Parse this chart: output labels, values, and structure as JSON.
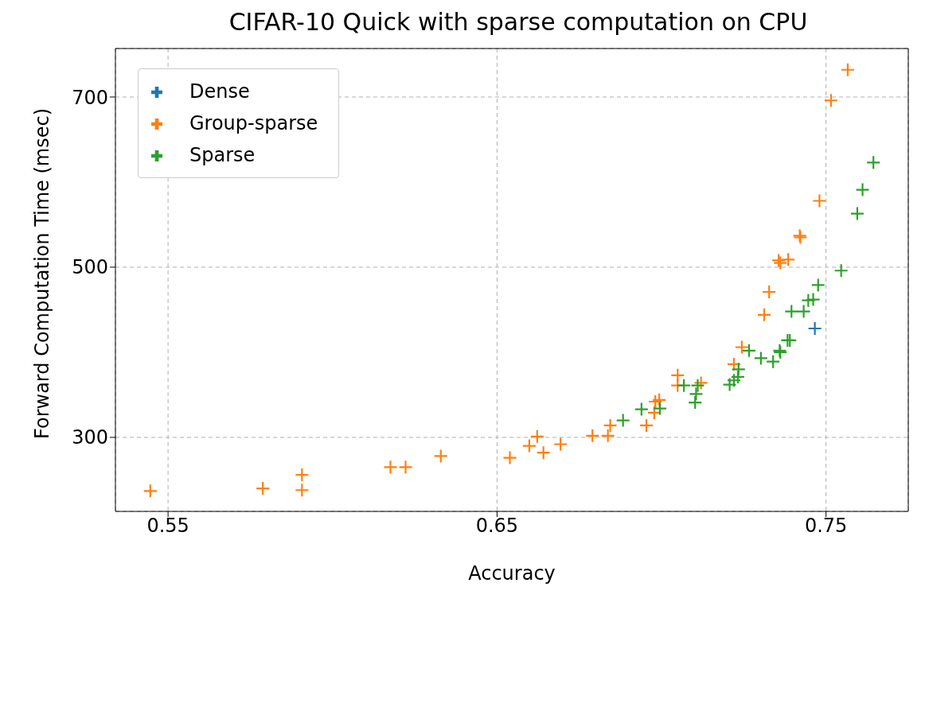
{
  "chart_data": {
    "type": "scatter",
    "title": "CIFAR-10 Quick with sparse computation on CPU",
    "xlabel": "Accuracy",
    "ylabel": "Forward Computation Time (msec)",
    "xlim": [
      0.534,
      0.775
    ],
    "ylim": [
      213,
      757
    ],
    "xticks": [
      0.55,
      0.65,
      0.75
    ],
    "yticks": [
      300,
      500,
      700
    ],
    "grid": true,
    "legend": "top left",
    "marker": "cross",
    "series": [
      {
        "name": "Dense",
        "color": "#1f77b4",
        "x": [
          0.7466
        ],
        "values": [
          428
        ]
      },
      {
        "name": "Group-sparse",
        "color": "#ff7f0e",
        "x": [
          0.5446,
          0.5788,
          0.5907,
          0.5907,
          0.6176,
          0.6222,
          0.6329,
          0.6539,
          0.6598,
          0.6622,
          0.6641,
          0.6693,
          0.679,
          0.6837,
          0.6844,
          0.6954,
          0.6978,
          0.6981,
          0.6993,
          0.7049,
          0.7049,
          0.712,
          0.722,
          0.7244,
          0.7312,
          0.7327,
          0.7356,
          0.7385,
          0.7361,
          0.748,
          0.742,
          0.7422,
          0.7566,
          0.7515
        ],
        "values": [
          237,
          240,
          256,
          238,
          265,
          265,
          278,
          276,
          290,
          301,
          282,
          292,
          302,
          302,
          314,
          314,
          329,
          342,
          344,
          373,
          361,
          364,
          386,
          406,
          444,
          471,
          508,
          509,
          505,
          578,
          537,
          535,
          732,
          696
        ]
      },
      {
        "name": "Sparse",
        "color": "#2ca02c",
        "x": [
          0.7644,
          0.7611,
          0.7595,
          0.7546,
          0.7476,
          0.7446,
          0.7461,
          0.7395,
          0.7432,
          0.7383,
          0.739,
          0.7359,
          0.7361,
          0.7339,
          0.7302,
          0.7266,
          0.7234,
          0.7232,
          0.722,
          0.7207,
          0.7105,
          0.7102,
          0.711,
          0.7068,
          0.6995,
          0.6939,
          0.6883
        ],
        "values": [
          623,
          591,
          563,
          496,
          479,
          461,
          462,
          448,
          448,
          414,
          414,
          402,
          400,
          389,
          393,
          402,
          380,
          371,
          367,
          362,
          351,
          341,
          361,
          361,
          334,
          333,
          320
        ]
      }
    ]
  }
}
